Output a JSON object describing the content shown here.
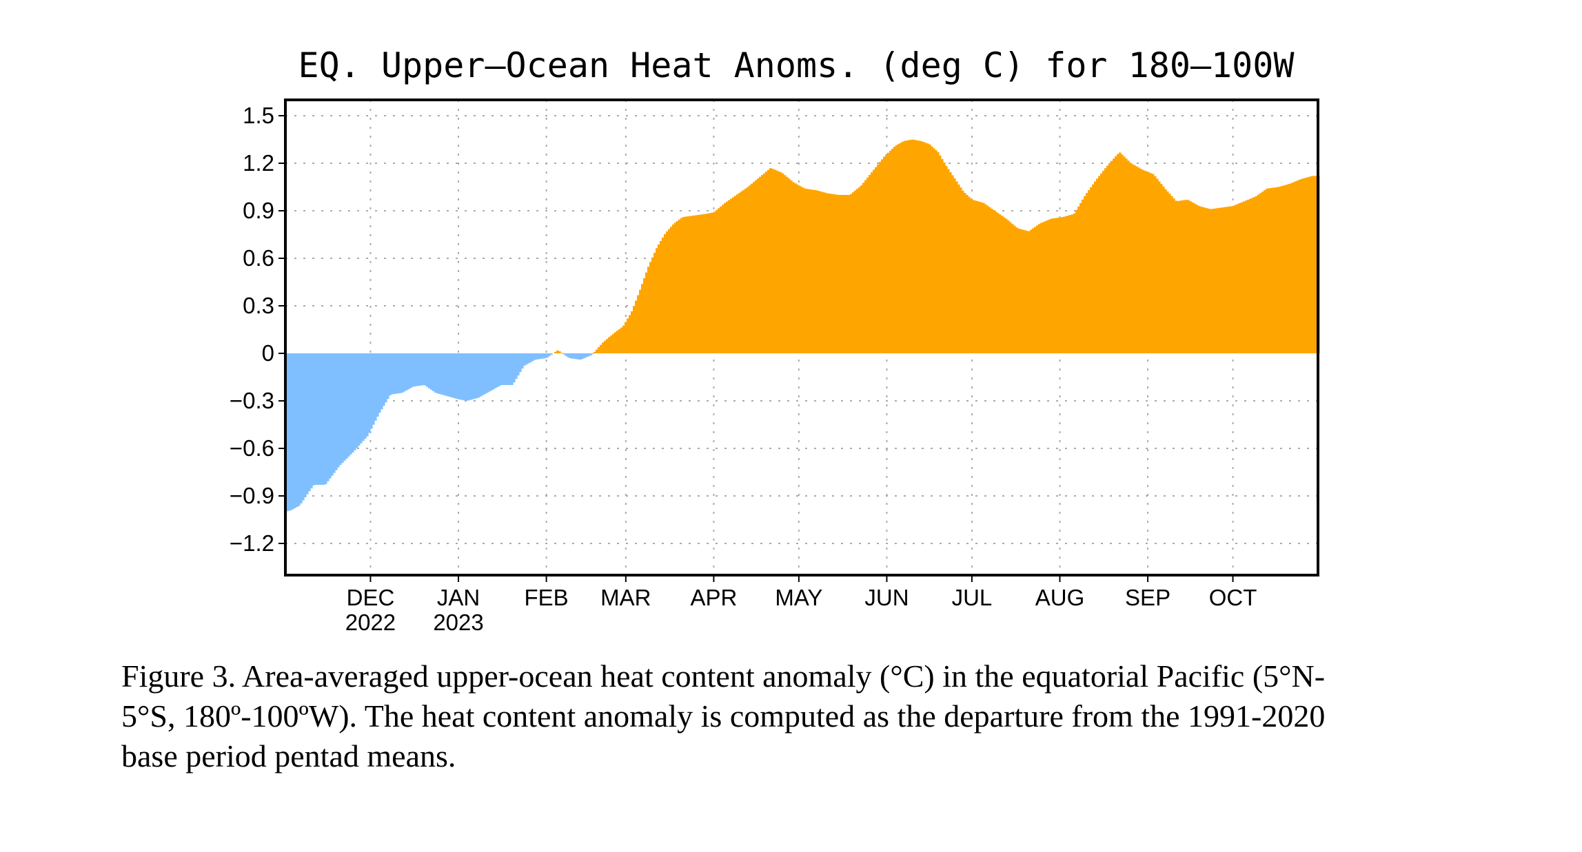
{
  "chart_data": {
    "type": "area",
    "title": "EQ. Upper–Ocean Heat Anoms. (deg C) for 180–100W",
    "xlabel": "",
    "ylabel": "",
    "ylim": [
      -1.4,
      1.6
    ],
    "yticks": [
      1.5,
      1.2,
      0.9,
      0.6,
      0.3,
      0,
      -0.3,
      -0.6,
      -0.9,
      -1.2
    ],
    "ytick_labels": [
      "1.5",
      "1.2",
      "0.9",
      "0.6",
      "0.3",
      "0",
      "−0.3",
      "−0.6",
      "−0.9",
      "−1.2"
    ],
    "xlim": [
      "2022-11-01",
      "2023-10-31"
    ],
    "month_ticks": [
      {
        "date": "2022-12-01",
        "label": "DEC",
        "sublabel": "2022"
      },
      {
        "date": "2023-01-01",
        "label": "JAN",
        "sublabel": "2023"
      },
      {
        "date": "2023-02-01",
        "label": "FEB",
        "sublabel": ""
      },
      {
        "date": "2023-03-01",
        "label": "MAR",
        "sublabel": ""
      },
      {
        "date": "2023-04-01",
        "label": "APR",
        "sublabel": ""
      },
      {
        "date": "2023-05-01",
        "label": "MAY",
        "sublabel": ""
      },
      {
        "date": "2023-06-01",
        "label": "JUN",
        "sublabel": ""
      },
      {
        "date": "2023-07-01",
        "label": "JUL",
        "sublabel": ""
      },
      {
        "date": "2023-08-01",
        "label": "AUG",
        "sublabel": ""
      },
      {
        "date": "2023-09-01",
        "label": "SEP",
        "sublabel": ""
      },
      {
        "date": "2023-10-01",
        "label": "OCT",
        "sublabel": ""
      }
    ],
    "grid": true,
    "positive_color": "#ffa500",
    "negative_color": "#7fbfff",
    "series": [
      {
        "x": [
          "2022-11-01",
          "2022-11-03",
          "2022-11-06",
          "2022-11-09",
          "2022-11-11",
          "2022-11-15",
          "2022-11-20",
          "2022-11-25",
          "2022-11-30",
          "2022-12-04",
          "2022-12-08",
          "2022-12-12",
          "2022-12-16",
          "2022-12-20",
          "2022-12-24",
          "2022-12-28",
          "2023-01-01",
          "2023-01-04",
          "2023-01-08",
          "2023-01-12",
          "2023-01-16",
          "2023-01-20",
          "2023-01-24",
          "2023-01-28",
          "2023-02-01",
          "2023-02-05",
          "2023-02-09",
          "2023-02-13",
          "2023-02-17",
          "2023-02-21",
          "2023-02-25",
          "2023-02-28",
          "2023-03-03",
          "2023-03-06",
          "2023-03-09",
          "2023-03-12",
          "2023-03-15",
          "2023-03-18",
          "2023-03-21",
          "2023-03-25",
          "2023-03-29",
          "2023-04-01",
          "2023-04-05",
          "2023-04-09",
          "2023-04-13",
          "2023-04-17",
          "2023-04-21",
          "2023-04-25",
          "2023-04-29",
          "2023-05-03",
          "2023-05-07",
          "2023-05-11",
          "2023-05-15",
          "2023-05-19",
          "2023-05-23",
          "2023-05-27",
          "2023-05-31",
          "2023-06-04",
          "2023-06-07",
          "2023-06-10",
          "2023-06-13",
          "2023-06-16",
          "2023-06-19",
          "2023-06-22",
          "2023-06-25",
          "2023-06-28",
          "2023-07-01",
          "2023-07-05",
          "2023-07-09",
          "2023-07-13",
          "2023-07-17",
          "2023-07-21",
          "2023-07-25",
          "2023-07-29",
          "2023-08-02",
          "2023-08-06",
          "2023-08-10",
          "2023-08-14",
          "2023-08-18",
          "2023-08-22",
          "2023-08-26",
          "2023-08-30",
          "2023-09-03",
          "2023-09-07",
          "2023-09-11",
          "2023-09-15",
          "2023-09-19",
          "2023-09-23",
          "2023-09-27",
          "2023-10-01",
          "2023-10-05",
          "2023-10-09",
          "2023-10-13",
          "2023-10-17",
          "2023-10-21",
          "2023-10-25",
          "2023-10-29",
          "2023-10-31"
        ],
        "y": [
          -1.0,
          -0.99,
          -0.96,
          -0.88,
          -0.83,
          -0.83,
          -0.71,
          -0.62,
          -0.52,
          -0.38,
          -0.26,
          -0.25,
          -0.21,
          -0.2,
          -0.25,
          -0.27,
          -0.29,
          -0.3,
          -0.28,
          -0.24,
          -0.2,
          -0.2,
          -0.08,
          -0.04,
          -0.03,
          0.02,
          -0.03,
          -0.04,
          -0.01,
          0.07,
          0.13,
          0.17,
          0.26,
          0.4,
          0.55,
          0.67,
          0.76,
          0.82,
          0.86,
          0.87,
          0.88,
          0.89,
          0.95,
          1.0,
          1.05,
          1.11,
          1.17,
          1.14,
          1.08,
          1.04,
          1.03,
          1.01,
          1.0,
          1.0,
          1.06,
          1.15,
          1.24,
          1.31,
          1.34,
          1.35,
          1.34,
          1.32,
          1.27,
          1.18,
          1.1,
          1.02,
          0.97,
          0.95,
          0.9,
          0.85,
          0.79,
          0.77,
          0.82,
          0.85,
          0.86,
          0.88,
          1.0,
          1.1,
          1.19,
          1.27,
          1.2,
          1.16,
          1.13,
          1.04,
          0.96,
          0.97,
          0.93,
          0.91,
          0.92,
          0.93,
          0.96,
          0.99,
          1.04,
          1.05,
          1.07,
          1.1,
          1.12,
          1.12
        ]
      }
    ]
  },
  "caption": {
    "line1": "Figure 3. Area-averaged upper-ocean heat content anomaly (°C) in the equatorial Pacific (5°N-",
    "line2": "5°S, 180º-100ºW). The heat content anomaly is computed as the departure from the 1991-2020",
    "line3": "base period pentad means."
  }
}
